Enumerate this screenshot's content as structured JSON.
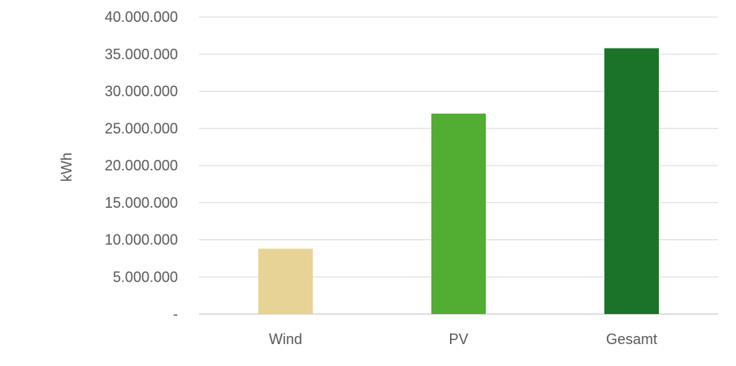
{
  "chart_data": {
    "type": "bar",
    "title": "",
    "xlabel": "",
    "ylabel": "kWh",
    "categories": [
      "Wind",
      "PV",
      "Gesamt"
    ],
    "values": [
      8800000,
      27000000,
      35800000
    ],
    "bar_colors": [
      "#e6d395",
      "#52ae32",
      "#1a7328"
    ],
    "ylim": [
      0,
      40000000
    ],
    "yticks": [
      0,
      5000000,
      10000000,
      15000000,
      20000000,
      25000000,
      30000000,
      35000000,
      40000000
    ],
    "ytick_labels": [
      "-",
      "5.000.000",
      "10.000.000",
      "15.000.000",
      "20.000.000",
      "25.000.000",
      "30.000.000",
      "35.000.000",
      "40.000.000"
    ],
    "grid": true,
    "legend": "none"
  }
}
